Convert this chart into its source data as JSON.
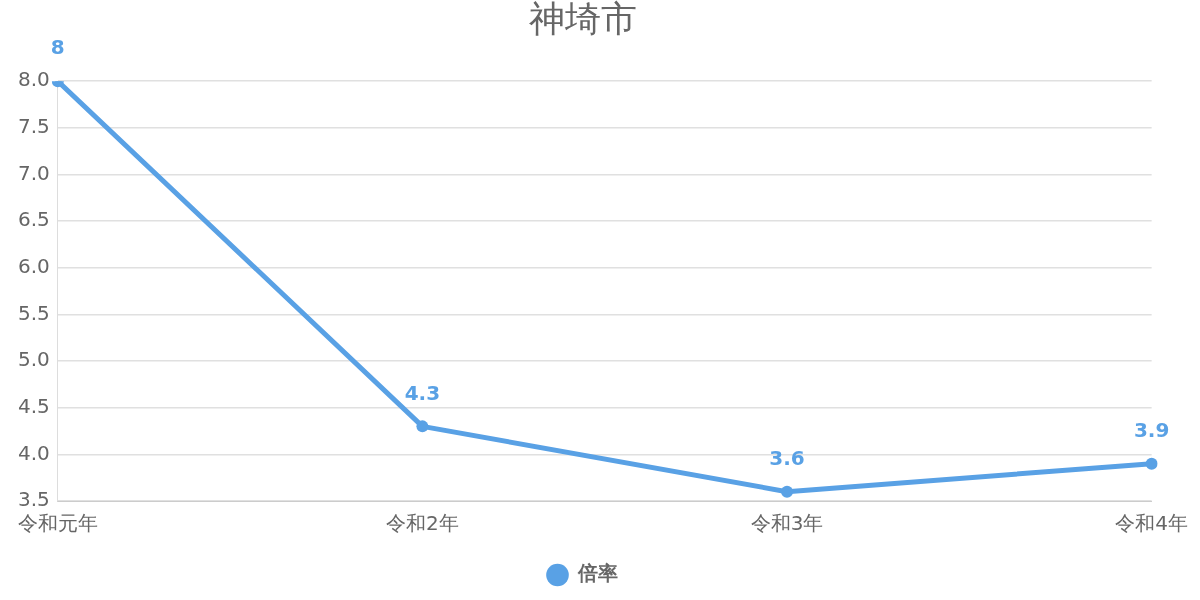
{
  "chart_data": {
    "type": "line",
    "title": "神埼市",
    "categories": [
      "令和元年",
      "令和2年",
      "令和3年",
      "令和4年"
    ],
    "series": [
      {
        "name": "倍率",
        "color": "#59a1e5",
        "values": [
          8,
          4.3,
          3.6,
          3.9
        ]
      }
    ],
    "ylim": [
      3.5,
      8.0
    ],
    "yticks": [
      {
        "value": 3.5,
        "label": "3.5"
      },
      {
        "value": 4.0,
        "label": "4.0"
      },
      {
        "value": 4.5,
        "label": "4.5"
      },
      {
        "value": 5.0,
        "label": "5.0"
      },
      {
        "value": 5.5,
        "label": "5.5"
      },
      {
        "value": 6.0,
        "label": "6.0"
      },
      {
        "value": 6.5,
        "label": "6.5"
      },
      {
        "value": 7.0,
        "label": "7.0"
      },
      {
        "value": 7.5,
        "label": "7.5"
      },
      {
        "value": 8.0,
        "label": "8.0"
      }
    ],
    "grid": "y",
    "legend": "bottom",
    "marker": "circle",
    "line_style": "solid",
    "data_labels": true
  }
}
